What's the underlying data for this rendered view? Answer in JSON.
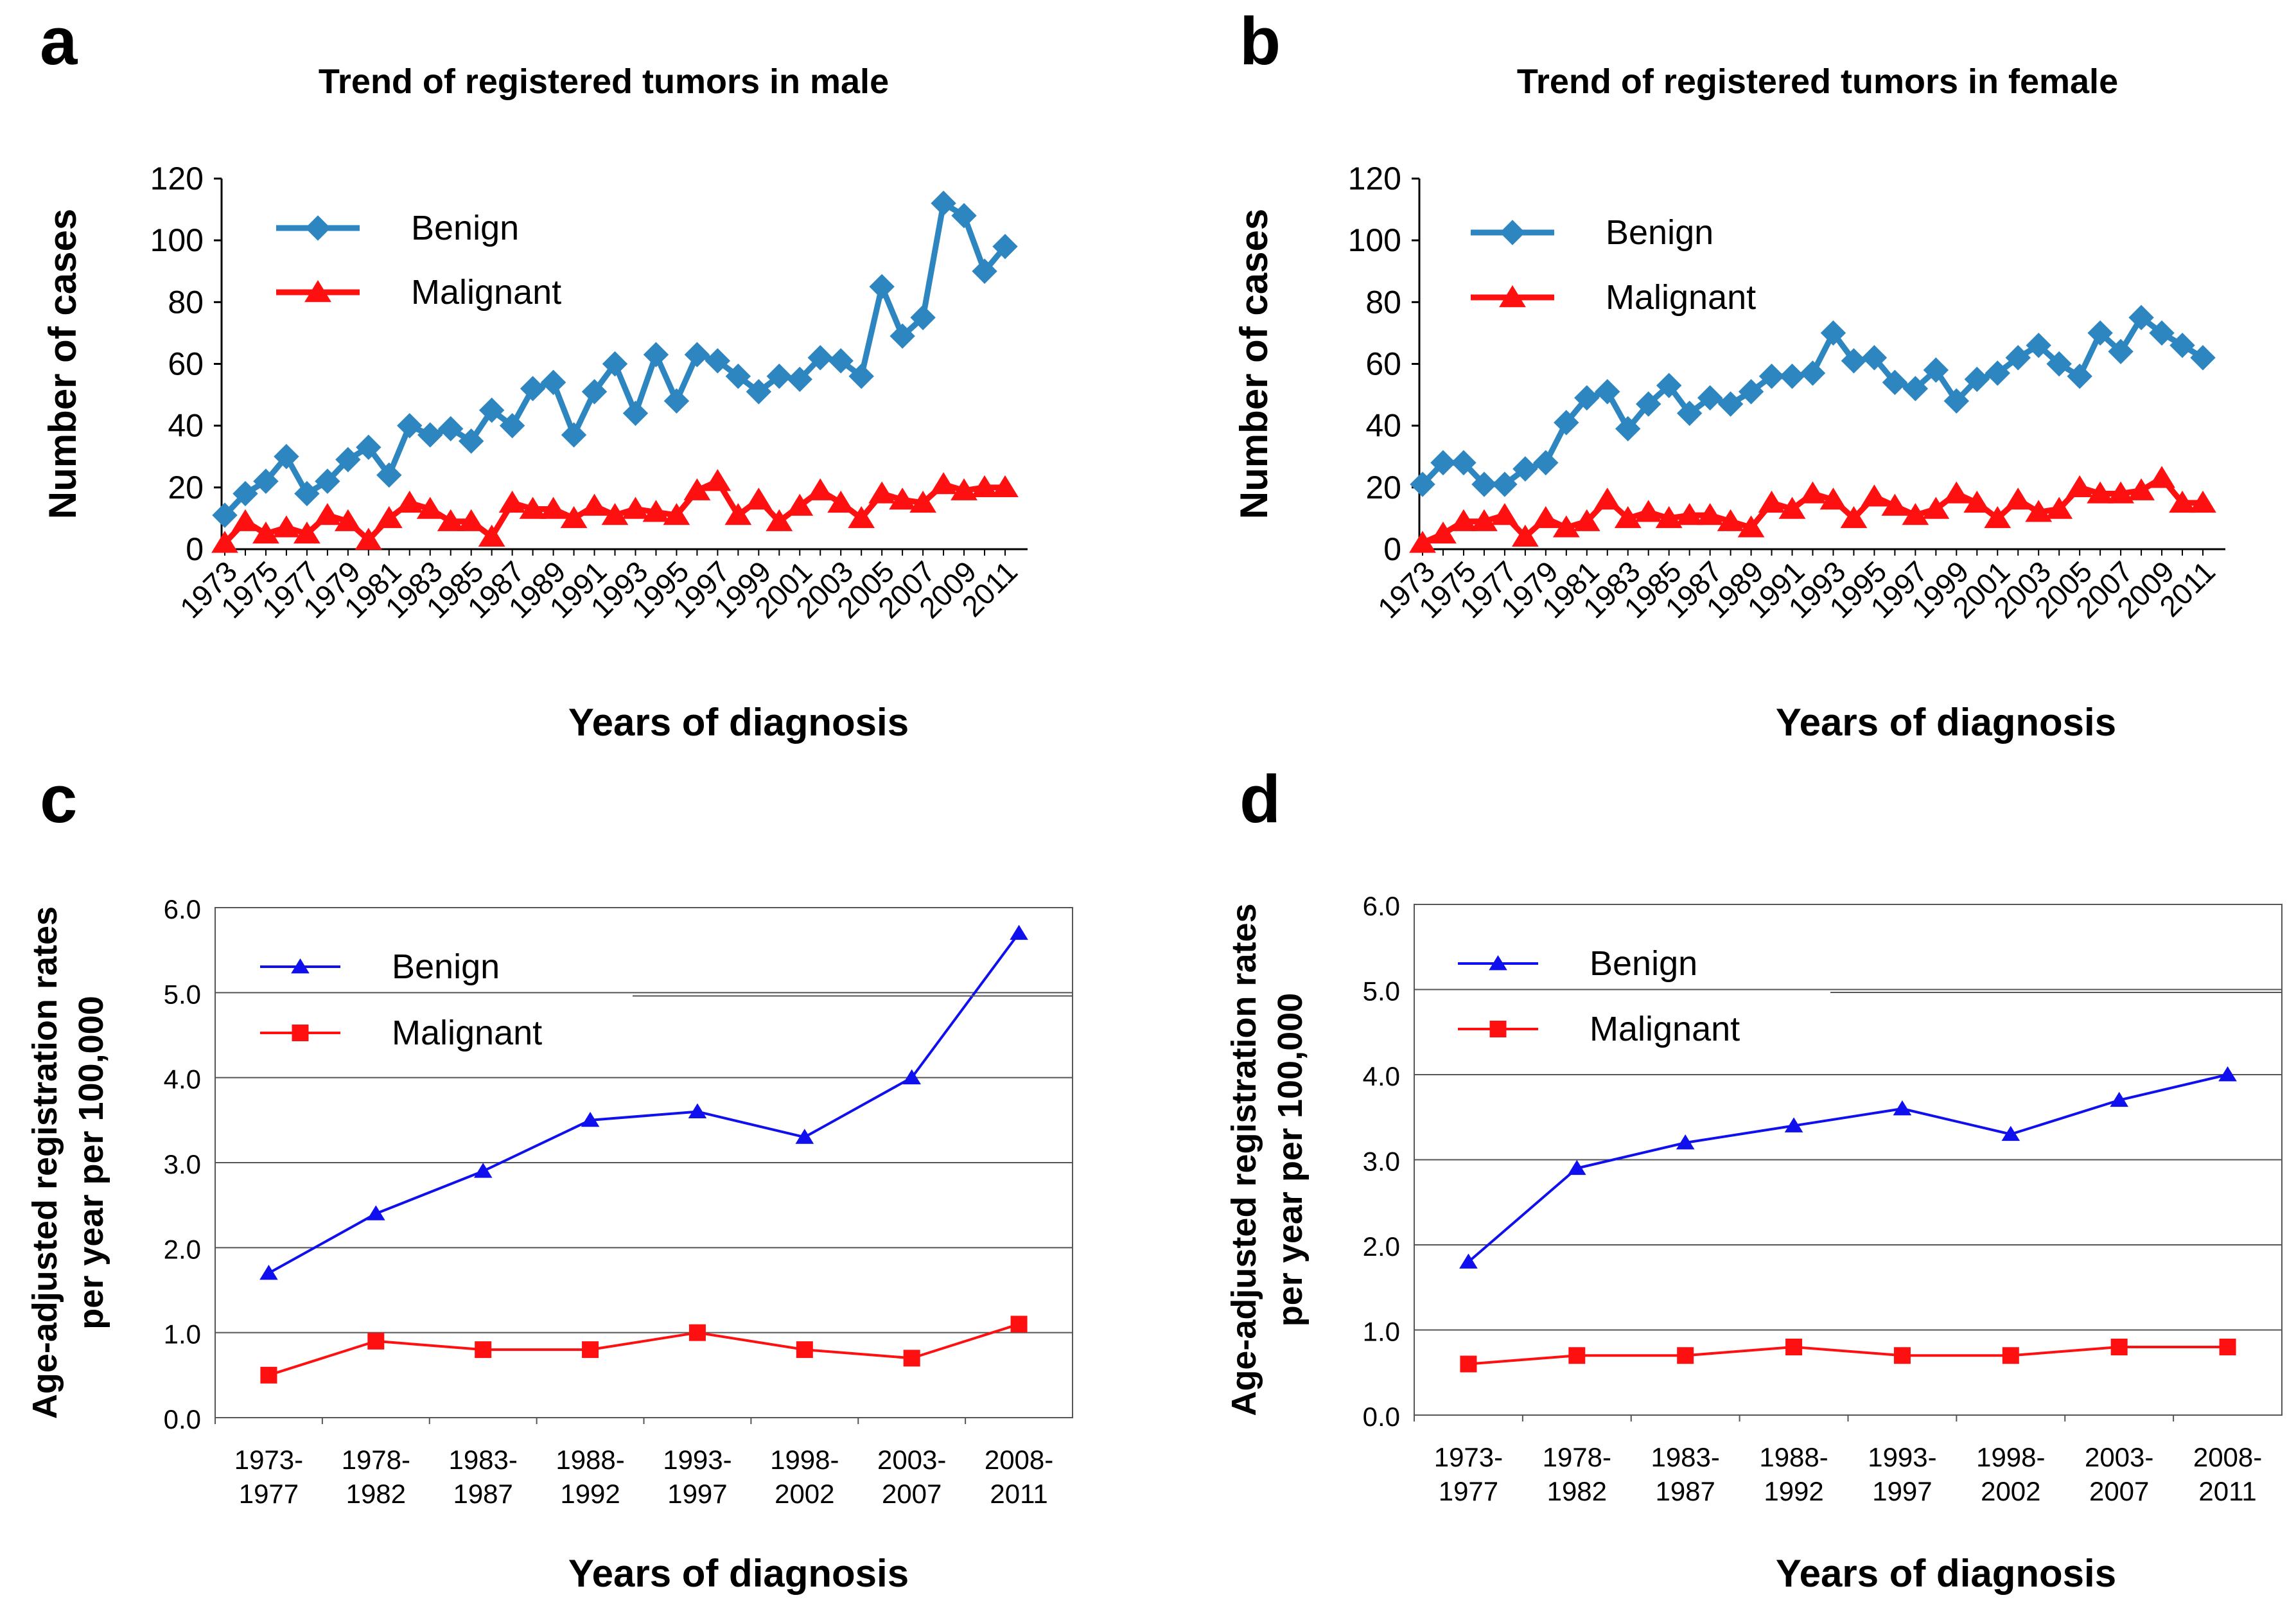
{
  "chart_data": [
    {
      "panel": "a",
      "type": "line",
      "title": "Trend of registered tumors in male",
      "xlabel": "Years of diagnosis",
      "ylabel": "Number of cases",
      "ylim": [
        0,
        120
      ],
      "yticks": [
        "0",
        "20",
        "40",
        "60",
        "80",
        "100",
        "120"
      ],
      "x": [
        1973,
        1974,
        1975,
        1976,
        1977,
        1978,
        1979,
        1980,
        1981,
        1982,
        1983,
        1984,
        1985,
        1986,
        1987,
        1988,
        1989,
        1990,
        1991,
        1992,
        1993,
        1994,
        1995,
        1996,
        1997,
        1998,
        1999,
        2000,
        2001,
        2002,
        2003,
        2004,
        2005,
        2006,
        2007,
        2008,
        2009,
        2010,
        2011
      ],
      "xtick_labels": [
        "1973",
        "1975",
        "1977",
        "1979",
        "1981",
        "1983",
        "1985",
        "1987",
        "1989",
        "1991",
        "1993",
        "1995",
        "1997",
        "1999",
        "2001",
        "2003",
        "2005",
        "2007",
        "2009",
        "2011"
      ],
      "grid": false,
      "legend_position": "top-left",
      "series": [
        {
          "name": "Benign",
          "color": "#2e86c1",
          "marker": "diamond",
          "values": [
            11,
            18,
            22,
            30,
            18,
            22,
            29,
            33,
            24,
            40,
            37,
            39,
            35,
            45,
            40,
            52,
            54,
            37,
            51,
            60,
            44,
            63,
            48,
            63,
            61,
            56,
            51,
            56,
            55,
            62,
            61,
            56,
            85,
            69,
            75,
            112,
            108,
            90,
            98
          ]
        },
        {
          "name": "Malignant",
          "color": "#ff1010",
          "marker": "triangle",
          "values": [
            2,
            9,
            5,
            7,
            5,
            11,
            9,
            3,
            10,
            15,
            13,
            9,
            9,
            4,
            15,
            13,
            13,
            10,
            14,
            11,
            13,
            12,
            11,
            19,
            22,
            11,
            16,
            9,
            14,
            19,
            15,
            10,
            18,
            16,
            15,
            21,
            19,
            20,
            20
          ]
        }
      ]
    },
    {
      "panel": "b",
      "type": "line",
      "title": "Trend of registered tumors in female",
      "xlabel": "Years of diagnosis",
      "ylabel": "Number of cases",
      "ylim": [
        0,
        120
      ],
      "yticks": [
        "0",
        "20",
        "40",
        "60",
        "80",
        "100",
        "120"
      ],
      "x": [
        1973,
        1974,
        1975,
        1976,
        1977,
        1978,
        1979,
        1980,
        1981,
        1982,
        1983,
        1984,
        1985,
        1986,
        1987,
        1988,
        1989,
        1990,
        1991,
        1992,
        1993,
        1994,
        1995,
        1996,
        1997,
        1998,
        1999,
        2000,
        2001,
        2002,
        2003,
        2004,
        2005,
        2006,
        2007,
        2008,
        2009,
        2010,
        2011
      ],
      "xtick_labels": [
        "1973",
        "1975",
        "1977",
        "1979",
        "1981",
        "1983",
        "1985",
        "1987",
        "1989",
        "1991",
        "1993",
        "1995",
        "1997",
        "1999",
        "2001",
        "2003",
        "2005",
        "2007",
        "2009",
        "2011"
      ],
      "grid": false,
      "legend_position": "top-left",
      "series": [
        {
          "name": "Benign",
          "color": "#2e86c1",
          "marker": "diamond",
          "values": [
            21,
            28,
            28,
            21,
            21,
            26,
            28,
            41,
            49,
            51,
            39,
            47,
            53,
            44,
            49,
            47,
            51,
            56,
            56,
            57,
            70,
            61,
            62,
            54,
            52,
            58,
            48,
            55,
            57,
            62,
            66,
            60,
            56,
            70,
            64,
            75,
            70,
            66,
            62
          ]
        },
        {
          "name": "Malignant",
          "color": "#ff1010",
          "marker": "triangle",
          "values": [
            2,
            5,
            9,
            9,
            11,
            4,
            10,
            7,
            9,
            16,
            10,
            12,
            10,
            11,
            11,
            9,
            7,
            15,
            13,
            18,
            16,
            10,
            17,
            14,
            11,
            13,
            18,
            15,
            10,
            16,
            12,
            13,
            20,
            18,
            18,
            19,
            23,
            15,
            15
          ]
        }
      ]
    },
    {
      "panel": "c",
      "type": "line",
      "title": "",
      "xlabel": "Years of diagnosis",
      "ylabel_lines": [
        "Age-adjusted registration rates",
        "per year per 100,000"
      ],
      "ylim": [
        0,
        6
      ],
      "yticks": [
        "0.0",
        "1.0",
        "2.0",
        "3.0",
        "4.0",
        "5.0",
        "6.0"
      ],
      "categories": [
        [
          "1973-",
          "1977"
        ],
        [
          "1978-",
          "1982"
        ],
        [
          "1983-",
          "1987"
        ],
        [
          "1988-",
          "1992"
        ],
        [
          "1993-",
          "1997"
        ],
        [
          "1998-",
          "2002"
        ],
        [
          "2003-",
          "2007"
        ],
        [
          "2008-",
          "2011"
        ]
      ],
      "grid": true,
      "legend_position": "top-left",
      "series": [
        {
          "name": "Benign",
          "color": "#1010ee",
          "marker": "triangle",
          "values": [
            1.7,
            2.4,
            2.9,
            3.5,
            3.6,
            3.3,
            4.0,
            5.7
          ]
        },
        {
          "name": "Malignant",
          "color": "#ff1010",
          "marker": "square",
          "values": [
            0.5,
            0.9,
            0.8,
            0.8,
            1.0,
            0.8,
            0.7,
            1.1
          ]
        }
      ]
    },
    {
      "panel": "d",
      "type": "line",
      "title": "",
      "xlabel": "Years of diagnosis",
      "ylabel_lines": [
        "Age-adjusted registration rates",
        "per year per 100,000"
      ],
      "ylim": [
        0,
        6
      ],
      "yticks": [
        "0.0",
        "1.0",
        "2.0",
        "3.0",
        "4.0",
        "5.0",
        "6.0"
      ],
      "categories": [
        [
          "1973-",
          "1977"
        ],
        [
          "1978-",
          "1982"
        ],
        [
          "1983-",
          "1987"
        ],
        [
          "1988-",
          "1992"
        ],
        [
          "1993-",
          "1997"
        ],
        [
          "1998-",
          "2002"
        ],
        [
          "2003-",
          "2007"
        ],
        [
          "2008-",
          "2011"
        ]
      ],
      "grid": true,
      "legend_position": "top-left",
      "series": [
        {
          "name": "Benign",
          "color": "#1010ee",
          "marker": "triangle",
          "values": [
            1.8,
            2.9,
            3.2,
            3.4,
            3.6,
            3.3,
            3.7,
            4.0
          ]
        },
        {
          "name": "Malignant",
          "color": "#ff1010",
          "marker": "square",
          "values": [
            0.6,
            0.7,
            0.7,
            0.8,
            0.7,
            0.7,
            0.8,
            0.8
          ]
        }
      ]
    }
  ]
}
